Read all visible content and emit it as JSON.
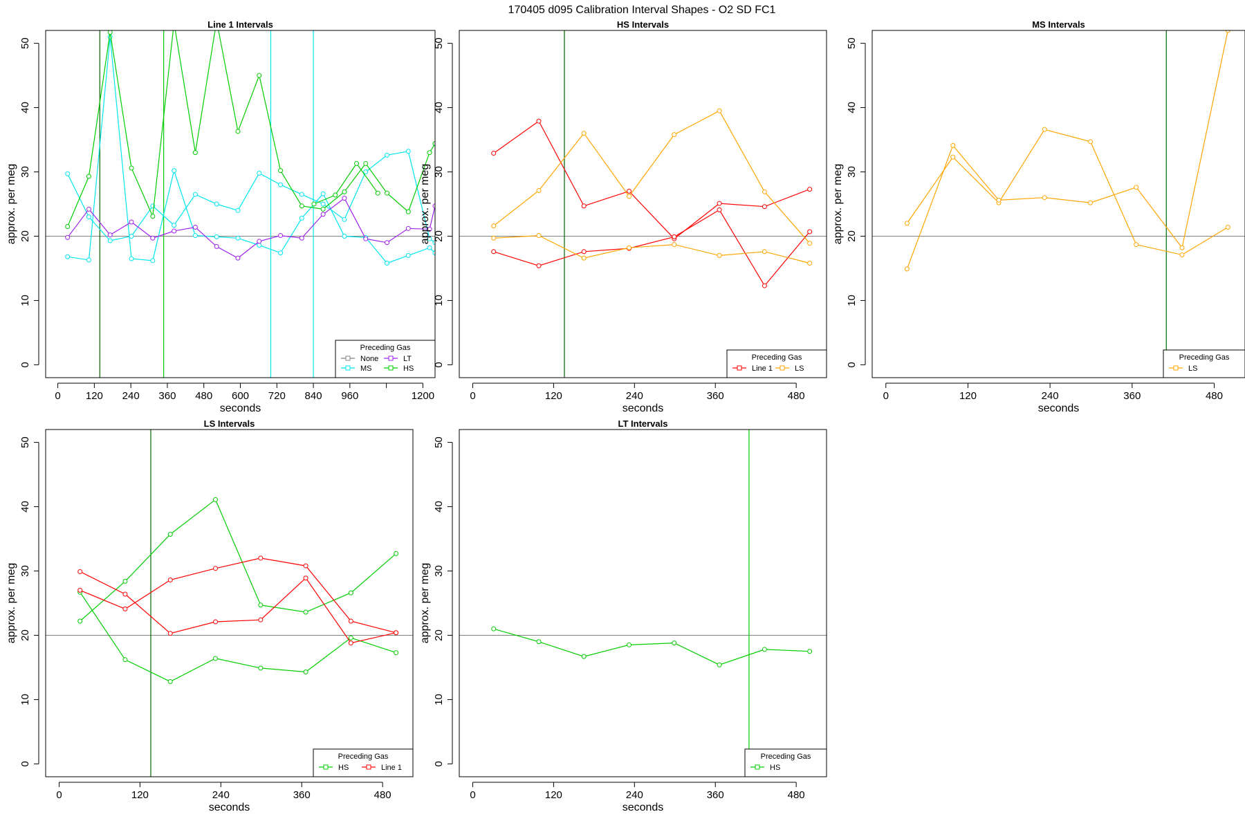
{
  "page": {
    "title": "170405   d095   Calibration Interval Shapes - O2 SD FC1"
  },
  "colors": {
    "axis": "#000000",
    "refline": "#808080",
    "None": "#808080",
    "LT": "#a020f0",
    "MS": "#00e5ee",
    "HS": "#00cd00",
    "Line 1": "#ff0000",
    "LS": "#ffa500",
    "vline_green": "#006400"
  },
  "chart_data": [
    {
      "type": "line",
      "title": "Line 1 Intervals",
      "xlabel": "seconds",
      "ylabel": "approx. per meg",
      "xlim": [
        -40,
        1240
      ],
      "ylim": [
        -2,
        52
      ],
      "xticks": [
        0,
        120,
        240,
        360,
        480,
        600,
        720,
        840,
        960,
        1080,
        1200
      ],
      "xtick_labels": [
        "0",
        "120",
        "240",
        "360",
        "480",
        "600",
        "720",
        "840",
        "960",
        "",
        "1200"
      ],
      "yticks": [
        0,
        10,
        20,
        30,
        40,
        50
      ],
      "hline": 20,
      "vlines": [
        {
          "x": 138,
          "color": "#006400"
        },
        {
          "x": 348,
          "color": "#00cd00"
        },
        {
          "x": 700,
          "color": "#00e5ee"
        },
        {
          "x": 840,
          "color": "#00e5ee"
        }
      ],
      "legend": {
        "title": "Preceding Gas",
        "position": "bottom-right",
        "columns": 2,
        "entries": [
          "None",
          "LT",
          "MS",
          "HS"
        ]
      },
      "series": [
        {
          "name": "MS",
          "x": [
            32,
            102,
            172,
            242,
            312,
            382,
            452,
            522,
            592,
            662,
            732,
            802,
            872,
            942,
            1012,
            1082,
            1152,
            1222,
            1240
          ],
          "values": [
            29.7,
            23.0,
            19.3,
            20.0,
            24.7,
            21.7,
            26.5,
            25.0,
            24.0,
            29.8,
            28.0,
            26.5,
            25.0,
            22.6,
            30.0,
            32.6,
            33.2,
            19.6,
            19.0
          ]
        },
        {
          "name": "MS",
          "x": [
            32,
            102,
            172,
            242,
            312,
            382,
            452,
            522,
            592,
            662,
            732,
            802,
            872,
            942,
            1012,
            1082,
            1152,
            1222,
            1240
          ],
          "values": [
            16.8,
            16.3,
            51.0,
            16.5,
            16.2,
            30.2,
            20.1,
            19.9,
            19.7,
            18.6,
            17.4,
            22.8,
            26.6,
            20.0,
            19.8,
            15.8,
            17.0,
            18.2,
            17.4
          ]
        },
        {
          "name": "LT",
          "x": [
            32,
            102,
            172,
            242,
            312,
            382,
            452,
            522,
            592,
            662,
            732,
            802,
            872,
            942,
            1012,
            1082,
            1152,
            1222,
            1240
          ],
          "values": [
            19.8,
            24.2,
            20.2,
            22.2,
            19.7,
            20.8,
            21.4,
            18.4,
            16.6,
            19.2,
            20.1,
            19.7,
            23.4,
            25.9,
            19.6,
            19.0,
            21.2,
            21.1,
            24.7
          ]
        },
        {
          "name": "HS",
          "x": [
            32,
            102,
            172,
            242,
            312,
            382,
            452,
            522,
            592,
            662,
            732,
            802,
            872,
            942,
            1012,
            1082,
            1152,
            1222,
            1240
          ],
          "values": [
            21.5,
            29.3,
            51.7,
            30.6,
            23.1,
            53.2,
            33.0,
            53.5,
            36.3,
            45.0,
            30.2,
            24.7,
            24.2,
            26.9,
            31.3,
            26.7,
            23.8,
            33.0,
            34.4
          ]
        },
        {
          "name": "HS",
          "x": [
            842,
            912,
            982,
            1052
          ],
          "values": [
            25.0,
            26.4,
            31.3,
            26.7
          ]
        }
      ]
    },
    {
      "type": "line",
      "title": "HS Intervals",
      "xlabel": "seconds",
      "ylabel": "approx. per meg",
      "xlim": [
        -20,
        525
      ],
      "ylim": [
        -2,
        52
      ],
      "xticks": [
        0,
        120,
        240,
        360,
        480
      ],
      "xtick_labels": [
        "0",
        "120",
        "240",
        "360",
        "480"
      ],
      "yticks": [
        0,
        10,
        20,
        30,
        40,
        50
      ],
      "hline": 20,
      "vlines": [
        {
          "x": 136,
          "color": "#006400"
        }
      ],
      "legend": {
        "title": "Preceding Gas",
        "position": "bottom-right",
        "columns": 2,
        "entries": [
          "Line 1",
          "LS"
        ]
      },
      "series": [
        {
          "name": "Line 1",
          "x": [
            31,
            98,
            165,
            232,
            299,
            366,
            433,
            500
          ],
          "values": [
            32.9,
            37.9,
            24.7,
            27.0,
            19.6,
            25.1,
            24.6,
            27.3
          ]
        },
        {
          "name": "Line 1",
          "x": [
            31,
            98,
            165,
            232,
            299,
            366,
            433,
            500
          ],
          "values": [
            17.6,
            15.4,
            17.6,
            18.1,
            19.9,
            24.1,
            12.3,
            20.7
          ]
        },
        {
          "name": "LS",
          "x": [
            31,
            98,
            165,
            232,
            299,
            366,
            433,
            500
          ],
          "values": [
            21.6,
            27.1,
            36.0,
            26.2,
            35.8,
            39.5,
            26.9,
            18.9
          ]
        },
        {
          "name": "LS",
          "x": [
            31,
            98,
            165,
            232,
            299,
            366,
            433,
            500
          ],
          "values": [
            19.7,
            20.1,
            16.6,
            18.2,
            18.7,
            17.0,
            17.6,
            15.8
          ]
        }
      ]
    },
    {
      "type": "line",
      "title": "MS Intervals",
      "xlabel": "seconds",
      "ylabel": "approx. per meg",
      "xlim": [
        -20,
        525
      ],
      "ylim": [
        -2,
        52
      ],
      "xticks": [
        0,
        120,
        240,
        360,
        480
      ],
      "xtick_labels": [
        "0",
        "120",
        "240",
        "360",
        "480"
      ],
      "yticks": [
        0,
        10,
        20,
        30,
        40,
        50
      ],
      "hline": 20,
      "vlines": [
        {
          "x": 410,
          "color": "#006400"
        }
      ],
      "legend": {
        "title": "Preceding Gas",
        "position": "bottom-right",
        "columns": 1,
        "entries": [
          "LS"
        ]
      },
      "series": [
        {
          "name": "LS",
          "x": [
            31,
            98,
            165,
            232,
            299,
            366,
            433,
            500
          ],
          "values": [
            22.0,
            32.3,
            25.2,
            36.6,
            34.7,
            18.7,
            17.1,
            21.4
          ]
        },
        {
          "name": "LS",
          "x": [
            31,
            98,
            165,
            232,
            299,
            366,
            433,
            500,
            525
          ],
          "values": [
            14.9,
            34.1,
            25.6,
            26.0,
            25.2,
            27.6,
            18.2,
            52.0,
            54.0
          ]
        }
      ]
    },
    {
      "type": "line",
      "title": "LS Intervals",
      "xlabel": "seconds",
      "ylabel": "approx. per meg",
      "xlim": [
        -20,
        525
      ],
      "ylim": [
        -2,
        52
      ],
      "xticks": [
        0,
        120,
        240,
        360,
        480
      ],
      "xtick_labels": [
        "0",
        "120",
        "240",
        "360",
        "480"
      ],
      "yticks": [
        0,
        10,
        20,
        30,
        40,
        50
      ],
      "hline": 20,
      "vlines": [
        {
          "x": 136,
          "color": "#006400"
        }
      ],
      "legend": {
        "title": "Preceding Gas",
        "position": "bottom-right",
        "columns": 2,
        "entries": [
          "HS",
          "Line 1"
        ]
      },
      "series": [
        {
          "name": "HS",
          "x": [
            31,
            98,
            165,
            232,
            299,
            366,
            433,
            500
          ],
          "values": [
            22.2,
            28.4,
            35.7,
            41.1,
            24.7,
            23.6,
            26.6,
            32.7
          ]
        },
        {
          "name": "HS",
          "x": [
            31,
            98,
            165,
            232,
            299,
            366,
            433,
            500
          ],
          "values": [
            26.7,
            16.2,
            12.8,
            16.4,
            14.9,
            14.3,
            19.6,
            17.3
          ]
        },
        {
          "name": "Line 1",
          "x": [
            31,
            98,
            165,
            232,
            299,
            366,
            433,
            500
          ],
          "values": [
            29.9,
            26.4,
            20.3,
            22.1,
            22.4,
            28.9,
            18.8,
            20.4
          ]
        },
        {
          "name": "Line 1",
          "x": [
            31,
            98,
            165,
            232,
            299,
            366,
            433,
            500
          ],
          "values": [
            27.0,
            24.1,
            28.6,
            30.4,
            32.0,
            30.8,
            22.2,
            20.4
          ]
        }
      ]
    },
    {
      "type": "line",
      "title": "LT Intervals",
      "xlabel": "seconds",
      "ylabel": "approx. per meg",
      "xlim": [
        -20,
        525
      ],
      "ylim": [
        -2,
        52
      ],
      "xticks": [
        0,
        120,
        240,
        360,
        480
      ],
      "xtick_labels": [
        "0",
        "120",
        "240",
        "360",
        "480"
      ],
      "yticks": [
        0,
        10,
        20,
        30,
        40,
        50
      ],
      "hline": 20,
      "vlines": [
        {
          "x": 410,
          "color": "#00cd00"
        }
      ],
      "legend": {
        "title": "Preceding Gas",
        "position": "bottom-right",
        "columns": 1,
        "entries": [
          "HS"
        ]
      },
      "series": [
        {
          "name": "HS",
          "x": [
            31,
            98,
            165,
            232,
            299,
            366,
            433,
            500
          ],
          "values": [
            21.0,
            19.0,
            16.7,
            18.5,
            18.8,
            15.4,
            17.8,
            17.5
          ]
        }
      ]
    }
  ]
}
